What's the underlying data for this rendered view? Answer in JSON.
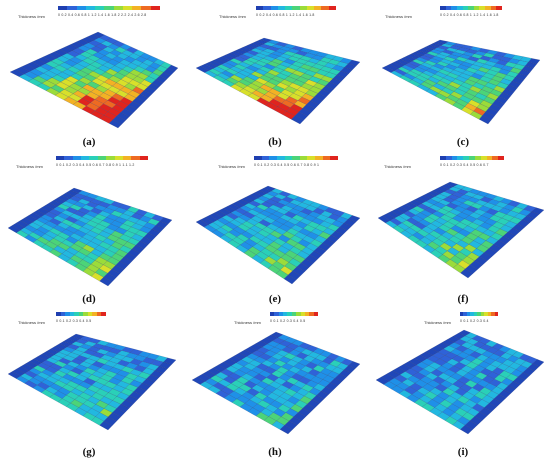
{
  "legend_title": "Thickness /mm",
  "legend_colors": [
    "#1f3fb0",
    "#2f62d8",
    "#1f90e8",
    "#22b8e0",
    "#2ad0b8",
    "#4cd478",
    "#9bdc3a",
    "#d8e02a",
    "#f3b224",
    "#ee6a22",
    "#e0241e"
  ],
  "panels": [
    {
      "id": "a",
      "caption": "(a)",
      "ticks": "0  0.2 0.4 0.6 0.8  1  1.2 1.4 1.6 1.8  2  2.2 2.4 2.6 2.8"
    },
    {
      "id": "b",
      "caption": "(b)",
      "ticks": "0  0.2 0.4 0.6 0.8  1  1.2 1.4 1.6 1.8"
    },
    {
      "id": "c",
      "caption": "(c)",
      "ticks": "0  0.2 0.4 0.6 0.8  1  1.2 1.4 1.6 1.8"
    },
    {
      "id": "d",
      "caption": "(d)",
      "ticks": "0  0.1 0.2 0.3 0.4 0.5 0.6 0.7 0.8 0.9  1  1.1 1.2"
    },
    {
      "id": "e",
      "caption": "(e)",
      "ticks": "0  0.1 0.2 0.3 0.4 0.5 0.6 0.7 0.8 0.9  1"
    },
    {
      "id": "f",
      "caption": "(f)",
      "ticks": "0  0.1 0.2 0.3 0.4 0.5 0.6 0.7"
    },
    {
      "id": "g",
      "caption": "(g)",
      "ticks": "0  0.1 0.2 0.3 0.4 0.5"
    },
    {
      "id": "h",
      "caption": "(h)",
      "ticks": "0  0.1 0.2 0.3 0.4 0.5"
    },
    {
      "id": "i",
      "caption": "(i)",
      "ticks": "0  0.1 0.2 0.3 0.4"
    }
  ]
}
